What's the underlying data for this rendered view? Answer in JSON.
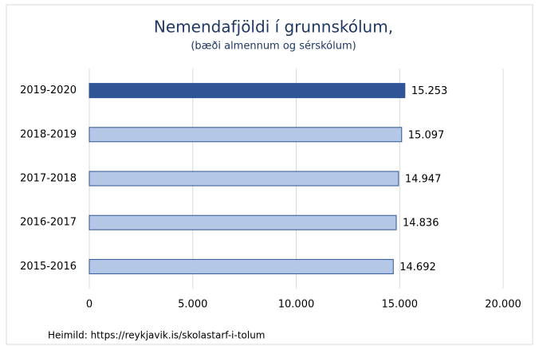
{
  "chart_data": {
    "type": "bar",
    "orientation": "horizontal",
    "title": "Nemendafjöldi í grunnskólum,",
    "subtitle": "(bæði almennum og sérskólum)",
    "source": "Heimild: https://reykjavik.is/skolastarf-i-tolum",
    "categories": [
      "2019-2020",
      "2018-2019",
      "2017-2018",
      "2016-2017",
      "2015-2016"
    ],
    "values": [
      15253,
      15097,
      14947,
      14836,
      14692
    ],
    "value_labels": [
      "15.253",
      "15.097",
      "14.947",
      "14.836",
      "14.692"
    ],
    "colors": [
      "#2f5597",
      "#b4c7e7",
      "#b4c7e7",
      "#b4c7e7",
      "#b4c7e7"
    ],
    "edge_color": "#2f5597",
    "xlim": [
      0,
      20000
    ],
    "xticks": [
      0,
      {
        "value": 5000,
        "label": "5.000"
      },
      {
        "value": 10000,
        "label": "10.000"
      },
      {
        "value": 15000,
        "label": "15.000"
      },
      {
        "value": 20000,
        "label": "20.000"
      }
    ],
    "grid": true
  }
}
